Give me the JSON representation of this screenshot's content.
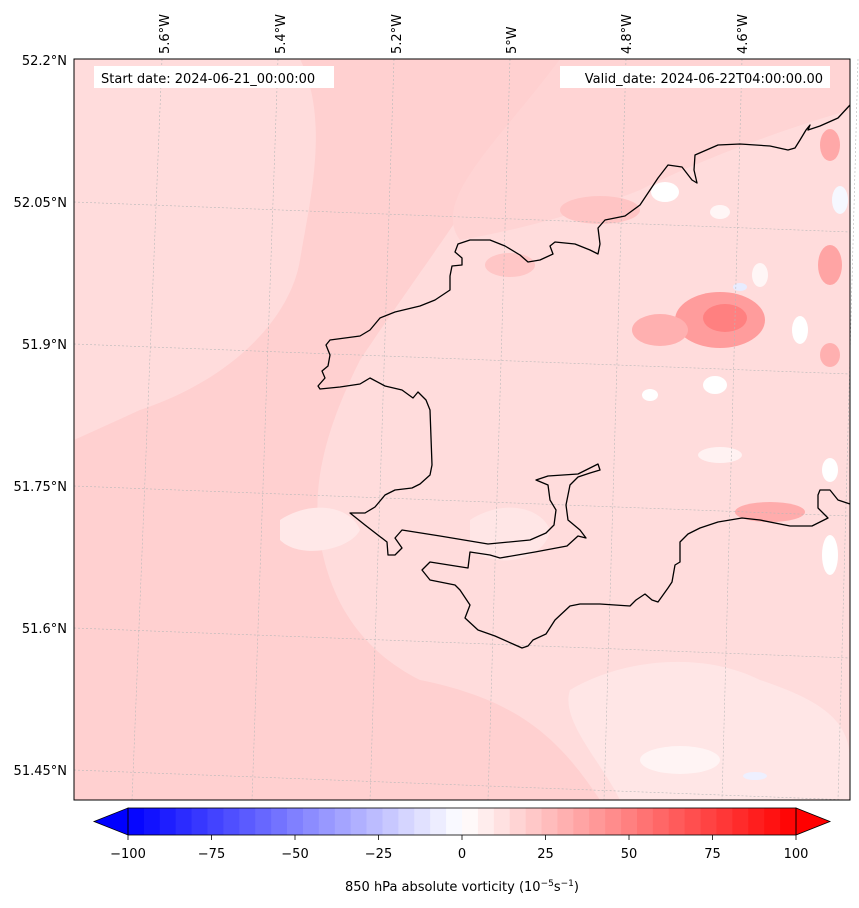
{
  "map": {
    "start_label": "Start date: 2024-06-21_00:00:00",
    "valid_label": "Valid_date: 2024-06-22T04:00:00.00",
    "lon_labels": [
      "5.6°W",
      "5.4°W",
      "5.2°W",
      "5°W",
      "4.8°W",
      "4.6°W"
    ],
    "lat_labels": [
      "52.2°N",
      "52.05°N",
      "51.9°N",
      "51.75°N",
      "51.6°N",
      "51.45°N"
    ],
    "field": "850 hPa absolute vorticity",
    "colors": {
      "base": "#ffdcdc",
      "coast": "#000000",
      "grid": "#b0b0b0"
    }
  },
  "colorbar": {
    "ticks": [
      "−100",
      "−75",
      "−50",
      "−25",
      "0",
      "25",
      "50",
      "75",
      "100"
    ],
    "label": "850 hPa absolute vorticity (10",
    "label_exp1": "−5",
    "label_mid": "s",
    "label_exp2": "−1",
    "label_end": ")",
    "vmin": -100,
    "vmax": 100,
    "levels": 42,
    "colors": {
      "min": "#0000ff",
      "mid": "#ffffff",
      "max": "#ff0000"
    }
  }
}
